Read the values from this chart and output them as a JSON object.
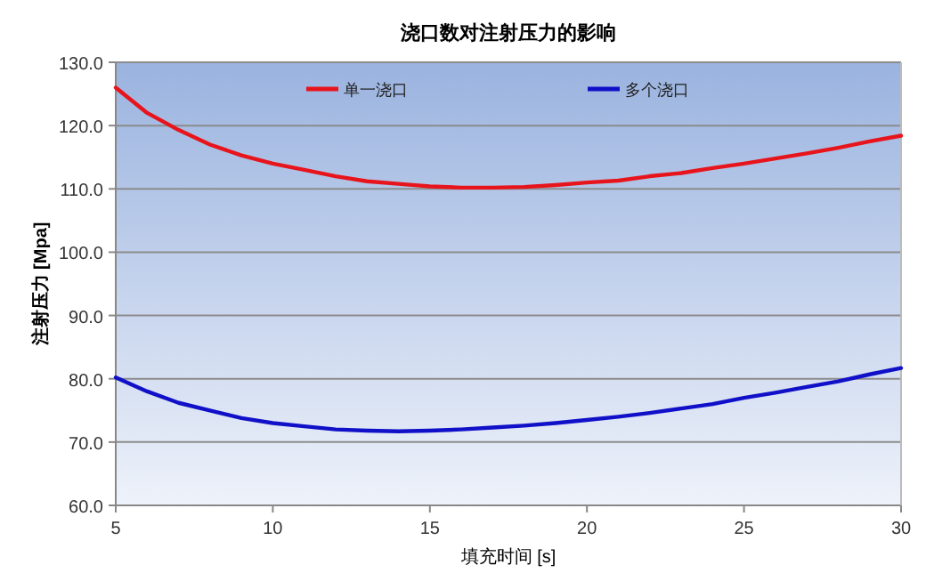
{
  "chart_data": {
    "type": "line",
    "title": "浇口数对注射压力的影响",
    "xlabel": "填充时间 [s]",
    "ylabel": "注射压力 [Mpa]",
    "x": [
      5,
      6,
      7,
      8,
      9,
      10,
      11,
      12,
      13,
      14,
      15,
      16,
      17,
      18,
      19,
      20,
      21,
      22,
      23,
      24,
      25,
      26,
      27,
      28,
      29,
      30
    ],
    "series": [
      {
        "name": "单一浇口",
        "color": "#e8141c",
        "values": [
          126,
          122,
          119.3,
          117,
          115.3,
          114,
          113,
          112,
          111.2,
          110.8,
          110.4,
          110.2,
          110.2,
          110.3,
          110.6,
          111,
          111.3,
          112,
          112.5,
          113.3,
          114,
          114.8,
          115.6,
          116.5,
          117.5,
          118.4
        ]
      },
      {
        "name": "多个浇口",
        "color": "#1010c8",
        "values": [
          80.2,
          78,
          76.2,
          75,
          73.8,
          73,
          72.5,
          72,
          71.8,
          71.7,
          71.8,
          72,
          72.3,
          72.6,
          73,
          73.5,
          74,
          74.6,
          75.3,
          76,
          77,
          77.8,
          78.7,
          79.6,
          80.7,
          81.7
        ]
      }
    ],
    "xlim": [
      5,
      30
    ],
    "xticks": [
      5,
      10,
      15,
      20,
      25,
      30
    ],
    "ylim": [
      60,
      130
    ],
    "yticks": [
      {
        "value": 60,
        "label": "60.0"
      },
      {
        "value": 70,
        "label": "70.0"
      },
      {
        "value": 80,
        "label": "80.0"
      },
      {
        "value": 90,
        "label": "90.0"
      },
      {
        "value": 100,
        "label": "100.0"
      },
      {
        "value": 110,
        "label": "110.0"
      },
      {
        "value": 120,
        "label": "120.0"
      },
      {
        "value": 130,
        "label": "130.0"
      }
    ],
    "grid": "y",
    "legend": "top",
    "marker": "none",
    "line_style": "solid"
  }
}
